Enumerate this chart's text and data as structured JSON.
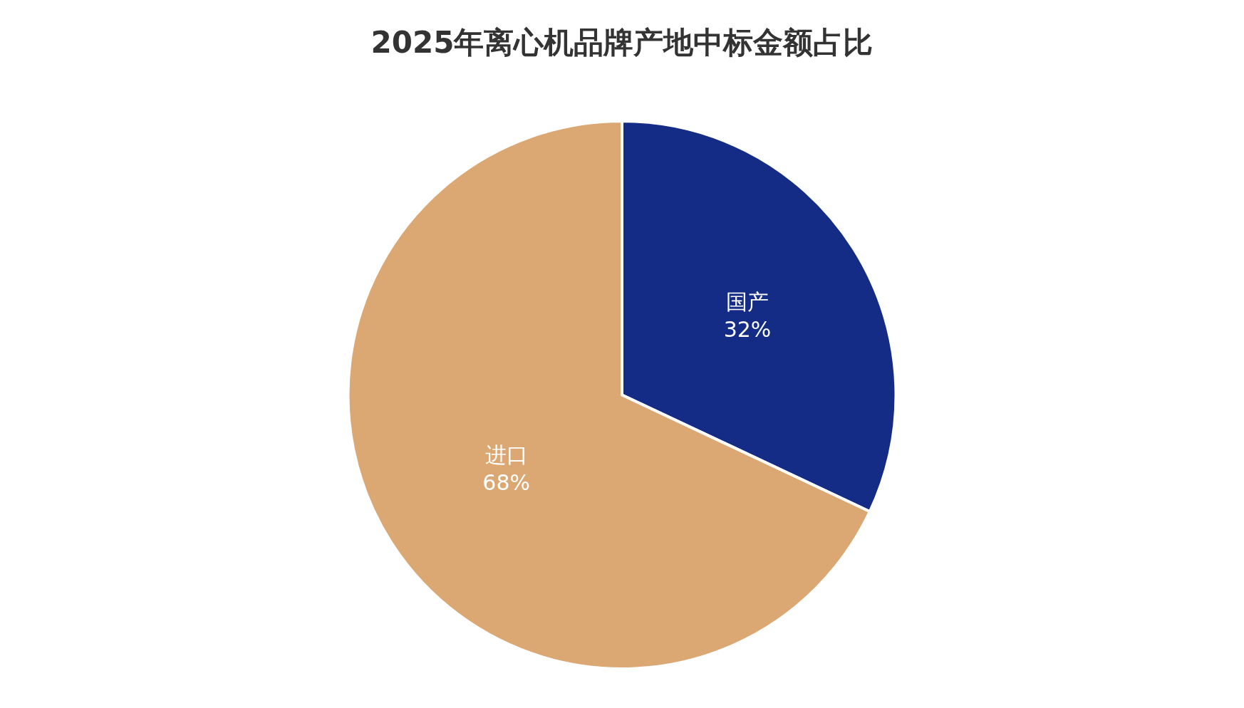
{
  "chart_data": {
    "type": "pie",
    "title": "2025年离心机品牌产地中标金额占比",
    "categories": [
      "国产",
      "进口"
    ],
    "values": [
      32,
      68
    ],
    "value_labels": [
      "32%",
      "68%"
    ],
    "colors": [
      "#142c85",
      "#dba874"
    ],
    "legend": false
  }
}
